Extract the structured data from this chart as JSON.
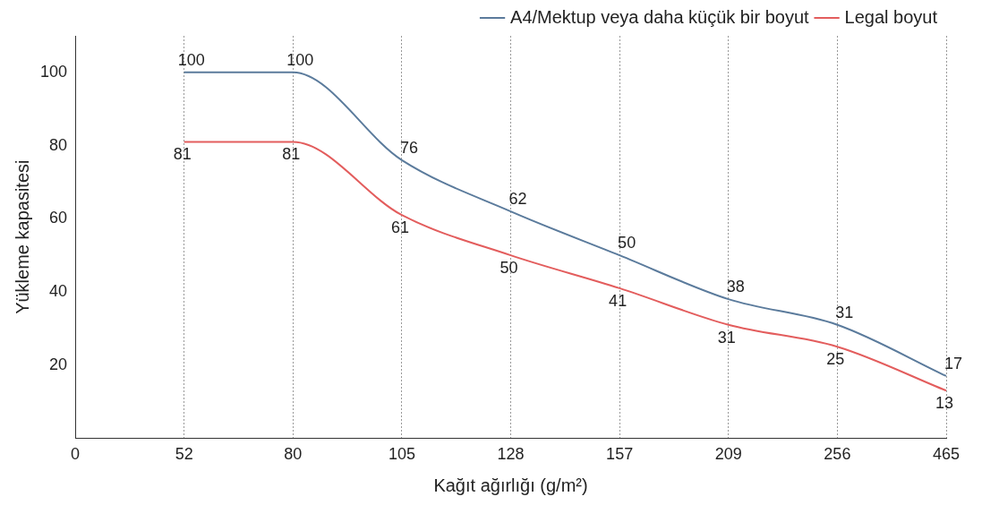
{
  "chart_data": {
    "type": "line",
    "xlabel": "Kağıt ağırlığı (g/m²)",
    "ylabel": "Yükleme kapasitesi",
    "categories": [
      "0",
      "52",
      "80",
      "105",
      "128",
      "157",
      "209",
      "256",
      "465"
    ],
    "series": [
      {
        "name": "A4/Mektup veya daha küçük bir boyut",
        "color": "#5b7b9c",
        "values": [
          null,
          100,
          100,
          76,
          62,
          50,
          38,
          31,
          17
        ]
      },
      {
        "name": "Legal boyut",
        "color": "#e35d5d",
        "values": [
          null,
          81,
          81,
          61,
          50,
          41,
          31,
          25,
          13
        ]
      }
    ],
    "ylim": [
      0,
      110
    ],
    "yticks": [
      20,
      40,
      60,
      80,
      100
    ],
    "grid": "x",
    "legend": "top right",
    "marker": "none",
    "line_style": "solid",
    "data_labels": true
  }
}
